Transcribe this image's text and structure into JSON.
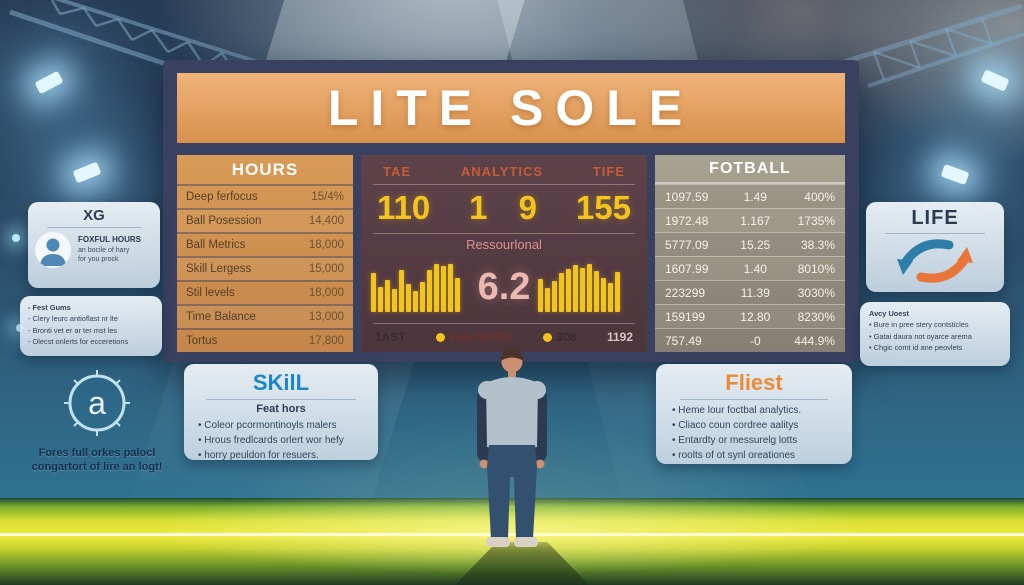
{
  "colors": {
    "banner_orange": "#e0984f",
    "panel_maroon": "#543a41",
    "score_yellow": "#f4c41c",
    "glass_card": "#dde7ee",
    "skill_title_blue": "#1d86c8",
    "fliest_title_orange": "#ed8a35",
    "grass_yellow_green": "#e8e53a",
    "sky_navy": "#2b4a66"
  },
  "scoreboard": {
    "title": "LITE SOLE"
  },
  "hours_panel": {
    "title": "HOURS",
    "rows": [
      {
        "label": "Deep ferfocus",
        "value": "15/4%"
      },
      {
        "label": "Ball Posession",
        "value": "14,400"
      },
      {
        "label": "Ball Metrics",
        "value": "18,000"
      },
      {
        "label": "Skill Lergess",
        "value": "15,000"
      },
      {
        "label": "Stil levels",
        "value": "18,000"
      },
      {
        "label": "Time Balance",
        "value": "13,000"
      },
      {
        "label": "Tortus",
        "value": "17,800"
      }
    ]
  },
  "analytics_panel": {
    "columns": [
      "TAE",
      "ANALYTICS",
      "TIFE"
    ],
    "values": [
      "110",
      "1 9",
      "155"
    ],
    "subtitle": "Ressourlonal",
    "score": "6.2",
    "footer": [
      "1AST",
      "Few MURS",
      "308",
      "1192"
    ]
  },
  "fotball_panel": {
    "title": "FOTBALL",
    "rows": [
      [
        "1097.59",
        "1.49",
        "400%"
      ],
      [
        "1972.48",
        "1.167",
        "1735%"
      ],
      [
        "5777.09",
        "15.25",
        "38.3%"
      ],
      [
        "1607.99",
        "1.40",
        "8010%"
      ],
      [
        "223299",
        "11.39",
        "3030%"
      ],
      [
        "159199",
        "12.80",
        "8230%"
      ],
      [
        "757.49",
        "-0",
        "444.9%"
      ]
    ]
  },
  "chart_data": {
    "type": "bar",
    "title": "Ressourlonal",
    "center_value": "6.2",
    "ylim": [
      0,
      1
    ],
    "series": [
      {
        "name": "left-bars",
        "values": [
          0.8,
          0.52,
          0.66,
          0.46,
          0.86,
          0.58,
          0.42,
          0.62,
          0.86,
          1.0,
          0.94,
          0.98,
          0.7
        ]
      },
      {
        "name": "right-bars",
        "values": [
          0.68,
          0.5,
          0.64,
          0.8,
          0.88,
          0.96,
          0.9,
          1.0,
          0.84,
          0.7,
          0.6,
          0.82
        ]
      }
    ]
  },
  "cards": {
    "xg": {
      "title": "XG",
      "heading": "FOXFUL HOURS",
      "lines": [
        "an bocile of hary",
        "for you prock"
      ]
    },
    "xg_notes": [
      "Fest Gums",
      "Clery leurc antioflast nr lte",
      "Bronti vet er ar ter mst les",
      "Olecst onlerts for ecceretions"
    ],
    "badge_letter": "a",
    "left_caption": [
      "Fores full orkes palocl",
      "congartort of lire an logt!"
    ],
    "life": {
      "title": "LIFE"
    },
    "life_notes": {
      "heading": "Avcy Uoest",
      "items": [
        "Bure in pree stery contsticles",
        "Gatai daura not oyarce arema",
        "Chgic comt id ane peovlets"
      ]
    },
    "skill": {
      "title": "SKilL",
      "subtitle": "Feat hors",
      "items": [
        "Coleor pcormontinoyls malers",
        "Hrous fredlcards orlert wor hefy",
        "horry peuldon for resuers."
      ]
    },
    "fliest": {
      "title": "Fliest",
      "items": [
        "Heme lour foctbal analytics.",
        "Cliaco coun cordree aalitys",
        "Entardty or messurelg lotts",
        "roolts of ot synl oreationes"
      ]
    }
  }
}
